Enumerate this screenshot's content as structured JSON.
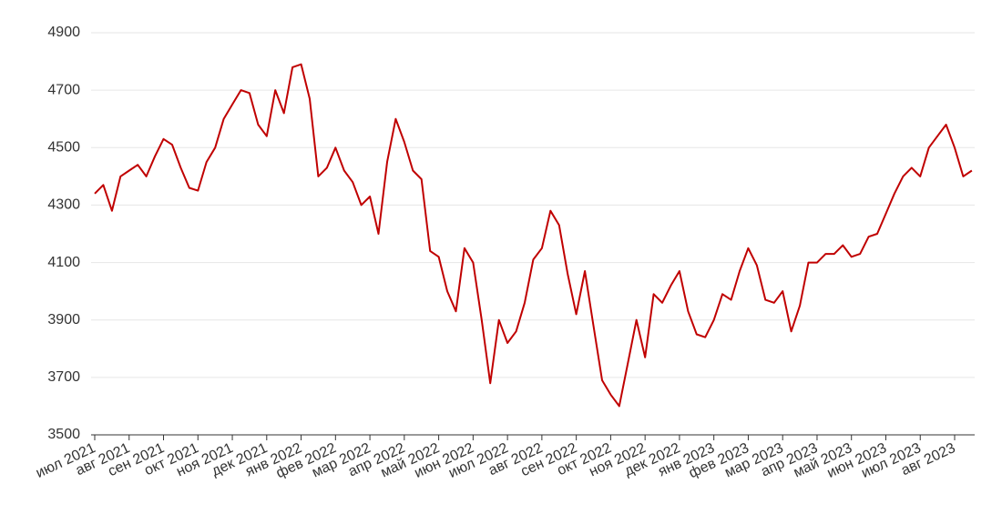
{
  "chart_data": {
    "type": "line",
    "color": "#c00000",
    "grid": true,
    "ylim": [
      3500,
      4900
    ],
    "yticks": [
      3500,
      3700,
      3900,
      4100,
      4300,
      4500,
      4700,
      4900
    ],
    "categories": [
      "июл 2021",
      null,
      null,
      null,
      "авг 2021",
      null,
      null,
      null,
      "сен 2021",
      null,
      null,
      null,
      "окт 2021",
      null,
      null,
      null,
      "ноя 2021",
      null,
      null,
      null,
      "дек 2021",
      null,
      null,
      null,
      "янв 2022",
      null,
      null,
      null,
      "фев 2022",
      null,
      null,
      null,
      "мар 2022",
      null,
      null,
      null,
      "апр 2022",
      null,
      null,
      null,
      "май 2022",
      null,
      null,
      null,
      "июн 2022",
      null,
      null,
      null,
      "июл 2022",
      null,
      null,
      null,
      "авг 2022",
      null,
      null,
      null,
      "сен 2022",
      null,
      null,
      null,
      "окт 2022",
      null,
      null,
      null,
      "ноя 2022",
      null,
      null,
      null,
      "дек 2022",
      null,
      null,
      null,
      "янв 2023",
      null,
      null,
      null,
      "фев 2023",
      null,
      null,
      null,
      "мар 2023",
      null,
      null,
      null,
      "апр 2023",
      null,
      null,
      null,
      "май 2023",
      null,
      null,
      null,
      "июн 2023",
      null,
      null,
      null,
      "июл 2023",
      null,
      null,
      null,
      "авг 2023",
      null,
      null
    ],
    "values": [
      4340,
      4370,
      4280,
      4400,
      4420,
      4440,
      4400,
      4470,
      4530,
      4510,
      4430,
      4360,
      4350,
      4450,
      4500,
      4600,
      4650,
      4700,
      4690,
      4580,
      4540,
      4700,
      4620,
      4780,
      4790,
      4670,
      4400,
      4430,
      4500,
      4420,
      4380,
      4300,
      4330,
      4200,
      4450,
      4600,
      4520,
      4420,
      4390,
      4140,
      4120,
      4000,
      3930,
      4150,
      4100,
      3900,
      3680,
      3900,
      3820,
      3860,
      3960,
      4110,
      4150,
      4280,
      4230,
      4060,
      3920,
      4070,
      3880,
      3690,
      3640,
      3600,
      3750,
      3900,
      3770,
      3990,
      3960,
      4020,
      4070,
      3930,
      3850,
      3840,
      3900,
      3990,
      3970,
      4070,
      4150,
      4090,
      3970,
      3960,
      4000,
      3860,
      3950,
      4100,
      4100,
      4130,
      4130,
      4160,
      4120,
      4130,
      4190,
      4200,
      4270,
      4340,
      4400,
      4430,
      4400,
      4500,
      4540,
      4580,
      4500,
      4400,
      4420
    ]
  }
}
